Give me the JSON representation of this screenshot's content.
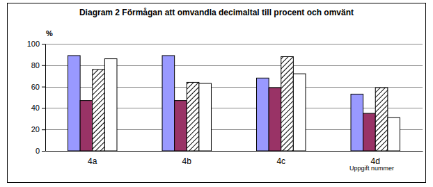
{
  "chart_data": {
    "type": "bar",
    "title": "Diagram 2 Förmågan att omvandla decimaltal till procent och omvänt",
    "y_label": "%",
    "x_label": "Uppgift nummer",
    "categories": [
      "4a",
      "4b",
      "4c",
      "4d"
    ],
    "series": [
      {
        "color": "#9999ff",
        "values": [
          89,
          89,
          68,
          53
        ]
      },
      {
        "color": "#993366",
        "values": [
          47,
          47,
          59,
          35
        ]
      },
      {
        "color": "#ffffff",
        "line_style": "hatched",
        "values": [
          76,
          64,
          88,
          59
        ]
      },
      {
        "color": "#ffffff",
        "values": [
          86,
          63,
          72,
          31
        ]
      }
    ],
    "ylim": [
      0,
      100
    ],
    "yticks": [
      0,
      20,
      40,
      60,
      80,
      100
    ],
    "grid": true
  }
}
